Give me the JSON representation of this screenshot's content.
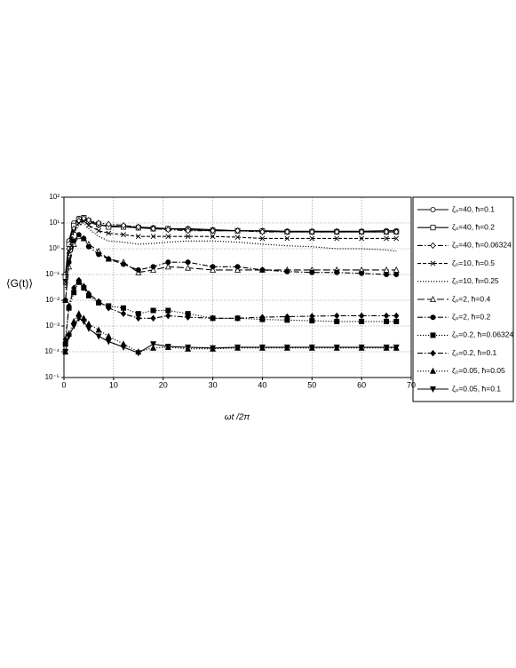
{
  "chart_data": {
    "type": "line",
    "xlabel": "ωt /2π",
    "ylabel": "⟨G(t)⟩",
    "log_y": true,
    "grid": true,
    "legend": "right",
    "xlim": [
      0,
      70
    ],
    "xticks": [
      0,
      10,
      20,
      30,
      40,
      50,
      60,
      70
    ],
    "ylim": [
      1e-05,
      100
    ],
    "yticks": [
      {
        "value": 1e-05,
        "label": "10⁻⁵"
      },
      {
        "value": 0.0001,
        "label": "10⁻⁴"
      },
      {
        "value": 0.001,
        "label": "10⁻³"
      },
      {
        "value": 0.01,
        "label": "10⁻²"
      },
      {
        "value": 0.1,
        "label": "10⁻¹"
      },
      {
        "value": 1,
        "label": "10⁰"
      },
      {
        "value": 10,
        "label": "10¹"
      },
      {
        "value": 100,
        "label": "10²"
      }
    ],
    "x": [
      0.3,
      1,
      2,
      3,
      4,
      5,
      7,
      9,
      12,
      15,
      18,
      21,
      25,
      30,
      35,
      40,
      45,
      50,
      55,
      60,
      65,
      67
    ],
    "series": [
      {
        "name": "ζ₀=40, ħ=0.1",
        "color": "#000",
        "style": "solid",
        "marker": "circle-open",
        "values": [
          0.1,
          2,
          10,
          15,
          14,
          11,
          8,
          8,
          7,
          7,
          6.5,
          6,
          6,
          5.5,
          5,
          5,
          4.8,
          4.8,
          4.8,
          4.8,
          5,
          5
        ]
      },
      {
        "name": "ζ₀=40, ħ=0.2",
        "color": "#000",
        "style": "solid",
        "marker": "square-open",
        "values": [
          0.08,
          1.5,
          8,
          14,
          16,
          12,
          9,
          7,
          7,
          6.5,
          6,
          6,
          5.5,
          5,
          5,
          4.8,
          4.5,
          4.5,
          4.5,
          4.5,
          4.5,
          4.5
        ]
      },
      {
        "name": "ζ₀=40, ħ=0.06324",
        "color": "#000",
        "style": "dashdot",
        "marker": "diamond-open",
        "values": [
          0.05,
          1,
          6,
          12,
          15,
          13,
          10,
          9,
          8,
          7,
          6,
          5.5,
          5,
          5,
          5,
          4.5,
          4.5,
          4.5,
          4.5,
          4.5,
          4.5,
          4.5
        ]
      },
      {
        "name": "ζ₀=10, ħ=0.5",
        "color": "#000",
        "style": "dashed",
        "marker": "x",
        "values": [
          0.05,
          0.8,
          5,
          10,
          12,
          8,
          5,
          4,
          3.5,
          3,
          3,
          3,
          3,
          3,
          2.8,
          2.5,
          2.5,
          2.5,
          2.5,
          2.5,
          2.5,
          2.5
        ]
      },
      {
        "name": "ζ₀=10, ħ=0.25",
        "color": "#000",
        "style": "dotted",
        "marker": "none",
        "values": [
          0.03,
          0.5,
          4,
          8,
          10,
          6,
          3,
          2,
          1.8,
          1.5,
          1.6,
          1.8,
          2,
          2,
          1.8,
          1.5,
          1.3,
          1.2,
          1,
          1,
          0.9,
          0.8
        ]
      },
      {
        "name": "ζ₀=2, ħ=0.4",
        "color": "#000",
        "style": "longdash",
        "marker": "triangle-open",
        "values": [
          0.01,
          0.2,
          1.5,
          3,
          2.5,
          1.5,
          0.8,
          0.4,
          0.3,
          0.12,
          0.15,
          0.2,
          0.18,
          0.15,
          0.15,
          0.15,
          0.15,
          0.15,
          0.15,
          0.15,
          0.15,
          0.15
        ]
      },
      {
        "name": "ζ₀=2, ħ=0.2",
        "color": "#000",
        "style": "dashdot",
        "marker": "circle",
        "values": [
          0.01,
          0.3,
          2,
          3.5,
          2.5,
          1.2,
          0.6,
          0.4,
          0.25,
          0.15,
          0.2,
          0.3,
          0.3,
          0.2,
          0.2,
          0.15,
          0.13,
          0.12,
          0.12,
          0.11,
          0.1,
          0.1
        ]
      },
      {
        "name": "ζ₀=0.2, ħ=0.06324",
        "color": "#000",
        "style": "dotted",
        "marker": "square",
        "values": [
          0.0002,
          0.005,
          0.02,
          0.05,
          0.03,
          0.015,
          0.008,
          0.006,
          0.005,
          0.003,
          0.004,
          0.004,
          0.003,
          0.002,
          0.002,
          0.0018,
          0.0017,
          0.0016,
          0.0015,
          0.0015,
          0.0015,
          0.0015
        ]
      },
      {
        "name": "ζ₀=0.2, ħ=0.1",
        "color": "#000",
        "style": "dashdot",
        "marker": "diamond",
        "values": [
          0.0003,
          0.006,
          0.03,
          0.06,
          0.035,
          0.018,
          0.009,
          0.005,
          0.003,
          0.002,
          0.002,
          0.0025,
          0.0022,
          0.002,
          0.002,
          0.0022,
          0.0023,
          0.0024,
          0.0025,
          0.0025,
          0.0025,
          0.0025
        ]
      },
      {
        "name": "ζ₀=0.05, ħ=0.05",
        "color": "#000",
        "style": "dotted",
        "marker": "triangle",
        "values": [
          0.0001,
          0.0005,
          0.0015,
          0.003,
          0.002,
          0.0012,
          0.0007,
          0.0004,
          0.0002,
          0.0001,
          0.00014,
          0.00015,
          0.00013,
          0.00013,
          0.00014,
          0.00014,
          0.00014,
          0.00014,
          0.00014,
          0.00014,
          0.00014,
          0.00014
        ]
      },
      {
        "name": "ζ₀=0.05, ħ=0.1",
        "color": "#000",
        "style": "solid",
        "marker": "triangle-down",
        "values": [
          0.0001,
          0.0004,
          0.001,
          0.002,
          0.0015,
          0.0008,
          0.0004,
          0.00025,
          0.00015,
          9e-05,
          0.0002,
          0.00016,
          0.00015,
          0.00014,
          0.00015,
          0.00015,
          0.00015,
          0.00015,
          0.00015,
          0.00015,
          0.00015,
          0.00015
        ]
      }
    ]
  }
}
